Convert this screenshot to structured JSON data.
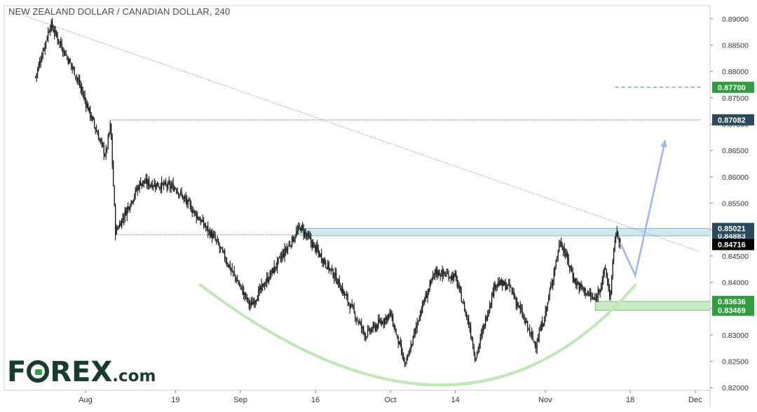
{
  "chart_data": {
    "type": "candlestick",
    "title": "NEW ZEALAND DOLLAR / CANADIAN DOLLAR, 240",
    "ylim": [
      0.8195,
      0.8925
    ],
    "y_ticks": [
      "0.89000",
      "0.88500",
      "0.88000",
      "0.87500",
      "0.87000",
      "0.86500",
      "0.86000",
      "0.85500",
      "0.85000",
      "0.84500",
      "0.84000",
      "0.83500",
      "0.83000",
      "0.82500",
      "0.82000"
    ],
    "x_labels": [
      "Aug",
      "19",
      "Sep",
      "16",
      "Oct",
      "14",
      "Nov",
      "18",
      "Dec"
    ],
    "price_path": [
      {
        "date": "2019-07-22",
        "price": 0.879
      },
      {
        "date": "2019-07-25",
        "price": 0.889
      },
      {
        "date": "2019-07-30",
        "price": 0.8795
      },
      {
        "date": "2019-08-05",
        "price": 0.864
      },
      {
        "date": "2019-08-06",
        "price": 0.87
      },
      {
        "date": "2019-08-07",
        "price": 0.8495
      },
      {
        "date": "2019-08-12",
        "price": 0.859
      },
      {
        "date": "2019-08-19",
        "price": 0.858
      },
      {
        "date": "2019-08-27",
        "price": 0.848
      },
      {
        "date": "2019-09-03",
        "price": 0.8355
      },
      {
        "date": "2019-09-13",
        "price": 0.8505
      },
      {
        "date": "2019-09-20",
        "price": 0.841
      },
      {
        "date": "2019-09-26",
        "price": 0.83
      },
      {
        "date": "2019-10-01",
        "price": 0.834
      },
      {
        "date": "2019-10-04",
        "price": 0.824
      },
      {
        "date": "2019-10-07",
        "price": 0.8345
      },
      {
        "date": "2019-10-10",
        "price": 0.842
      },
      {
        "date": "2019-10-14",
        "price": 0.841
      },
      {
        "date": "2019-10-17",
        "price": 0.831
      },
      {
        "date": "2019-10-18",
        "price": 0.8255
      },
      {
        "date": "2019-10-22",
        "price": 0.84
      },
      {
        "date": "2019-10-25",
        "price": 0.839
      },
      {
        "date": "2019-10-30",
        "price": 0.828
      },
      {
        "date": "2019-11-01",
        "price": 0.834
      },
      {
        "date": "2019-11-04",
        "price": 0.848
      },
      {
        "date": "2019-11-07",
        "price": 0.84
      },
      {
        "date": "2019-11-11",
        "price": 0.8365
      },
      {
        "date": "2019-11-13",
        "price": 0.8425
      },
      {
        "date": "2019-11-14",
        "price": 0.837
      },
      {
        "date": "2019-11-15",
        "price": 0.8495
      },
      {
        "date": "2019-11-16",
        "price": 0.848
      }
    ],
    "price_levels": [
      {
        "label": "0.87700",
        "value": 0.877,
        "color": "#2e9e3f"
      },
      {
        "label": "0.87082",
        "value": 0.87082,
        "color": "#2b4b5c"
      },
      {
        "label": "0.85021",
        "value": 0.85021,
        "color": "#2b4b5c"
      },
      {
        "label": "0.84883",
        "value": 0.84883,
        "color": "#2b4b5c"
      },
      {
        "label": "0.84716",
        "value": 0.84716,
        "color": "#000000"
      },
      {
        "label": "0.83636",
        "value": 0.83636,
        "color": "#2e9e3f"
      },
      {
        "label": "0.83469",
        "value": 0.83469,
        "color": "#2e9e3f"
      }
    ],
    "resistance_zone": {
      "from": 0.84883,
      "to": 0.85021,
      "start": "2019-09-13",
      "end": "2019-12-02"
    },
    "support_zone": {
      "from": 0.83469,
      "to": 0.83636,
      "start": "2019-11-11",
      "end": "2019-12-02"
    },
    "trendline": {
      "start": {
        "date": "2019-07-20",
        "price": 0.8905
      },
      "end": {
        "date": "2019-12-02",
        "price": 0.8458
      }
    },
    "dotted_levels": [
      {
        "value": 0.87082,
        "start": "2019-08-06",
        "end": "2019-12-02"
      },
      {
        "value": 0.849,
        "start": "2019-08-07",
        "end": "2019-09-13"
      }
    ],
    "target_dashed": {
      "value": 0.877,
      "start": "2019-11-15",
      "end": "2019-12-02"
    },
    "projection_path": [
      {
        "date": "2019-11-16",
        "price": 0.8475
      },
      {
        "date": "2019-11-19",
        "price": 0.8413
      },
      {
        "date": "2019-11-25",
        "price": 0.867
      }
    ],
    "rounding_bottom": [
      {
        "date": "2019-08-24",
        "price": 0.8395
      },
      {
        "date": "2019-10-11",
        "price": 0.8205
      },
      {
        "date": "2019-11-19",
        "price": 0.8395
      }
    ]
  },
  "colors": {
    "candle": "#000000",
    "axis_text": "#333333",
    "resistance_fill": "#cde9ef",
    "support_fill": "#c7ecc4",
    "arc": "#bfe8b4",
    "arrow": "#9db5f2",
    "trendline": "#a0a0a0"
  },
  "logo": {
    "prefix": "F",
    "suffix": "REX",
    "domain": ".com"
  }
}
